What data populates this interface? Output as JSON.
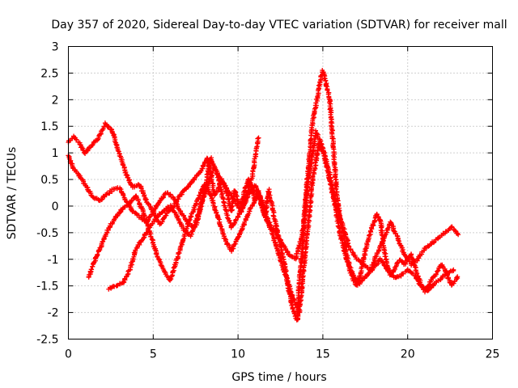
{
  "chart_data": {
    "type": "scatter",
    "title": "Day 357 of 2020, Sidereal Day-to-day VTEC variation (SDTVAR) for receiver mall",
    "xlabel": "GPS time / hours",
    "ylabel": "SDTVAR / TECUs",
    "xlim": [
      0,
      25
    ],
    "ylim": [
      -2.5,
      3
    ],
    "xticks": [
      "0",
      "5",
      "10",
      "15",
      "20",
      "25"
    ],
    "yticks": [
      "-2.5",
      "-2",
      "-1.5",
      "-1",
      "-0.5",
      "0",
      "0.5",
      "1",
      "1.5",
      "2",
      "2.5",
      "3"
    ],
    "grid": true,
    "marker": "+",
    "color": "#ff0000",
    "series": [
      {
        "name": "trace-1",
        "x": [
          0,
          0.3,
          0.6,
          1.0,
          1.4,
          1.8,
          2.2,
          2.6,
          3.0,
          3.4,
          3.8,
          4.2,
          4.6,
          5.0,
          5.4,
          5.8,
          6.2,
          6.6,
          7.0,
          7.4,
          7.8,
          8.0,
          8.2,
          8.4,
          8.6,
          8.8,
          9.0,
          9.2,
          9.4,
          9.6,
          9.8,
          10.0,
          10.2,
          10.4,
          10.6,
          10.8,
          11.0,
          11.2,
          11.4,
          11.6,
          11.8,
          12.0,
          12.2,
          12.4,
          12.6,
          12.8,
          13.0,
          13.2,
          13.4,
          13.5,
          13.6,
          13.8,
          14.0,
          14.2,
          14.4,
          14.6,
          14.8,
          15.0,
          15.2,
          15.4,
          15.6,
          15.8,
          16.0,
          16.2,
          16.4,
          16.6,
          16.8,
          17.0,
          17.2,
          17.4,
          17.6,
          17.8,
          18.0,
          18.2,
          18.4,
          18.6,
          18.8,
          19.0,
          19.2,
          19.4,
          19.6,
          19.8,
          20.0,
          20.2,
          20.4,
          20.6,
          20.8,
          21.0,
          21.2,
          21.4,
          21.6,
          21.8,
          22.0,
          22.2,
          22.4,
          22.6,
          22.8,
          23.0
        ],
        "y": [
          1.2,
          1.3,
          1.2,
          1.0,
          1.15,
          1.3,
          1.55,
          1.4,
          1.0,
          0.6,
          0.35,
          0.4,
          0.1,
          -0.1,
          -0.35,
          -0.15,
          0.0,
          0.2,
          0.35,
          0.5,
          0.65,
          0.8,
          0.9,
          0.6,
          0.2,
          0.3,
          0.5,
          0.4,
          0.2,
          -0.1,
          0.3,
          0.1,
          0.0,
          0.3,
          0.5,
          0.35,
          0.1,
          0.3,
          0.0,
          -0.2,
          0.3,
          0.0,
          -0.3,
          -0.6,
          -0.9,
          -1.2,
          -1.6,
          -1.9,
          -2.1,
          -2.15,
          -1.5,
          -0.8,
          0.2,
          0.9,
          1.6,
          1.9,
          2.3,
          2.55,
          2.3,
          2.0,
          1.2,
          0.3,
          -0.2,
          -0.5,
          -0.9,
          -1.2,
          -1.4,
          -1.5,
          -1.3,
          -1.0,
          -0.7,
          -0.5,
          -0.3,
          -0.15,
          -0.3,
          -0.8,
          -1.1,
          -1.3,
          -1.2,
          -1.05,
          -1.0,
          -1.1,
          -1.0,
          -0.9,
          -1.1,
          -1.3,
          -1.5,
          -1.6,
          -1.5,
          -1.4,
          -1.3,
          -1.2,
          -1.1,
          -1.2,
          -1.35,
          -1.5,
          -1.4,
          -1.3
        ]
      },
      {
        "name": "trace-2",
        "x": [
          0,
          0.3,
          0.6,
          1.0,
          1.4,
          1.8,
          2.2,
          2.6,
          3.0,
          3.4,
          3.8,
          4.2,
          4.6,
          5.0,
          5.4,
          5.8,
          6.2,
          6.6,
          7.0,
          7.4,
          7.8,
          8.2,
          8.6,
          9.0,
          9.4,
          9.8,
          10.2,
          10.6,
          11.0,
          11.4,
          11.8,
          12.2,
          12.6,
          13.0,
          13.4,
          13.8,
          14.2,
          14.6,
          15.0,
          15.4,
          15.8,
          16.2,
          16.6,
          17.0,
          17.4,
          17.8,
          18.2,
          18.6,
          19.0,
          19.4,
          19.8,
          20.2,
          20.6,
          21.0,
          21.4,
          21.8,
          22.2,
          22.6,
          23.0
        ],
        "y": [
          0.95,
          0.7,
          0.6,
          0.4,
          0.2,
          0.1,
          0.2,
          0.3,
          0.35,
          0.1,
          -0.1,
          -0.2,
          -0.3,
          -0.1,
          0.1,
          0.25,
          0.15,
          -0.1,
          -0.3,
          -0.4,
          0.0,
          0.4,
          0.7,
          0.5,
          0.3,
          0.1,
          -0.1,
          0.2,
          0.4,
          0.1,
          -0.3,
          -0.5,
          -0.7,
          -0.9,
          -1.0,
          -0.5,
          0.6,
          1.4,
          1.1,
          0.6,
          0.0,
          -0.4,
          -0.8,
          -1.0,
          -1.1,
          -1.2,
          -0.9,
          -0.6,
          -0.3,
          -0.6,
          -0.9,
          -1.1,
          -1.0,
          -0.8,
          -0.7,
          -0.6,
          -0.5,
          -0.4,
          -0.55
        ]
      },
      {
        "name": "trace-3",
        "x": [
          1.2,
          1.6,
          2.0,
          2.4,
          2.8,
          3.2,
          3.6,
          4.0,
          4.4,
          4.8,
          5.2,
          5.6,
          6.0,
          6.4,
          6.8,
          7.2,
          7.6,
          8.0,
          8.4,
          8.8,
          9.2,
          9.6,
          10.0,
          10.4,
          10.8,
          11.2,
          11.6,
          12.0,
          12.4,
          12.8,
          13.2,
          13.6,
          14.0,
          14.4,
          14.8,
          15.2,
          15.6,
          16.0,
          16.4,
          16.8,
          17.2,
          17.6,
          18.0,
          18.4,
          18.8,
          19.2,
          19.6,
          20.0,
          20.4,
          20.8,
          21.2,
          21.6,
          22.0,
          22.4,
          22.8
        ],
        "y": [
          -1.35,
          -1.0,
          -0.7,
          -0.4,
          -0.2,
          -0.05,
          0.05,
          0.2,
          -0.1,
          -0.5,
          -0.9,
          -1.2,
          -1.4,
          -1.0,
          -0.6,
          -0.2,
          0.1,
          0.4,
          0.2,
          -0.2,
          -0.6,
          -0.85,
          -0.6,
          -0.3,
          0.0,
          0.2,
          -0.2,
          -0.5,
          -0.9,
          -1.3,
          -1.7,
          -2.0,
          -0.8,
          0.5,
          1.2,
          0.8,
          0.2,
          -0.5,
          -1.0,
          -1.3,
          -1.45,
          -1.3,
          -1.15,
          -1.0,
          -1.2,
          -1.35,
          -1.3,
          -1.2,
          -1.3,
          -1.5,
          -1.6,
          -1.45,
          -1.35,
          -1.25,
          -1.2
        ]
      },
      {
        "name": "trace-4",
        "x": [
          2.4,
          2.8,
          3.2,
          3.6,
          4.0,
          4.4,
          4.8,
          5.2,
          5.6,
          6.0,
          6.4,
          6.8,
          7.2,
          7.6,
          8.0,
          8.4,
          8.8,
          9.2,
          9.6,
          10.0,
          10.4,
          10.8,
          11.2
        ],
        "y": [
          -1.55,
          -1.5,
          -1.45,
          -1.2,
          -0.8,
          -0.6,
          -0.4,
          -0.2,
          -0.1,
          0.0,
          -0.2,
          -0.45,
          -0.55,
          -0.3,
          0.3,
          0.9,
          0.6,
          0.0,
          -0.4,
          -0.2,
          0.1,
          0.5,
          1.3
        ]
      }
    ]
  }
}
